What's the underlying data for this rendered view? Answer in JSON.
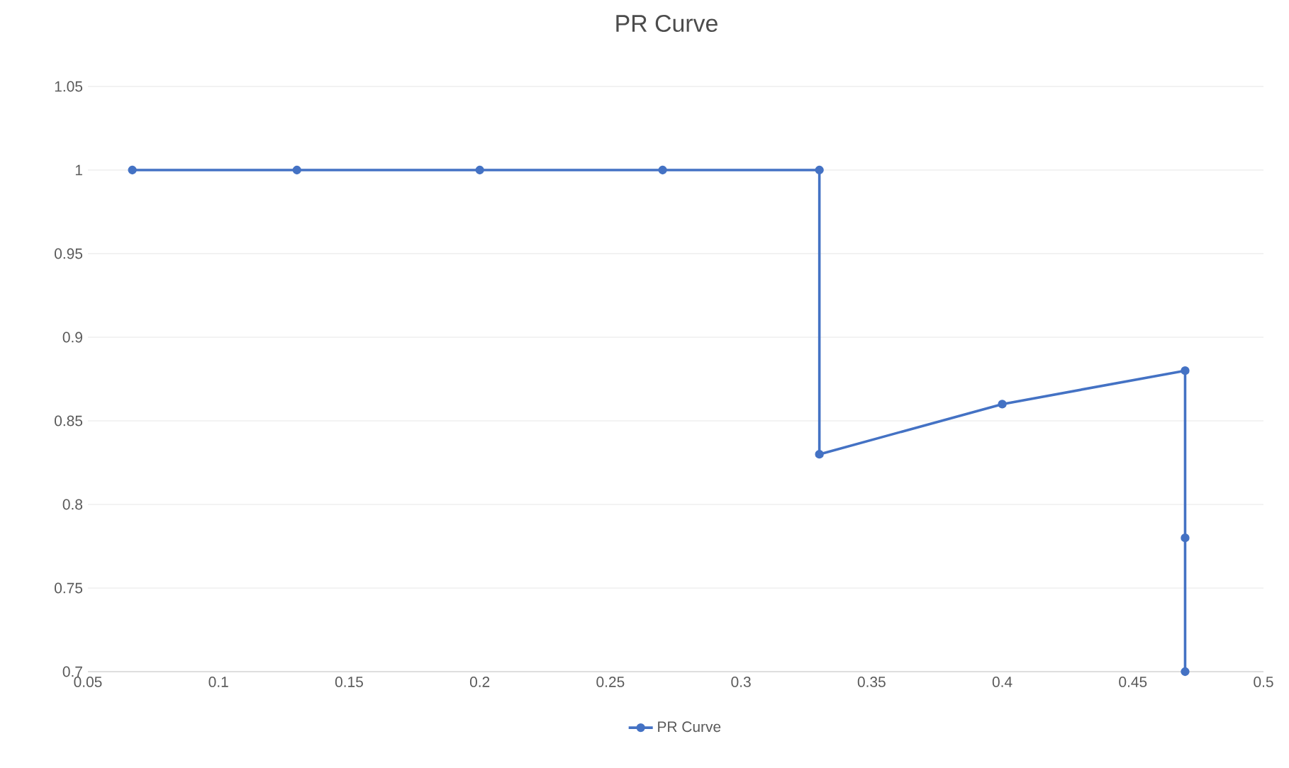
{
  "chart_data": {
    "type": "line",
    "title": "PR Curve",
    "x": [
      0.067,
      0.13,
      0.2,
      0.27,
      0.33,
      0.33,
      0.4,
      0.47,
      0.47,
      0.47
    ],
    "series": [
      {
        "name": "PR Curve",
        "color": "#4472c4",
        "values": [
          1,
          1,
          1,
          1,
          1,
          0.83,
          0.86,
          0.88,
          0.78,
          0.7
        ]
      }
    ],
    "xlim": [
      0.05,
      0.5
    ],
    "ylim": [
      0.7,
      1.05
    ],
    "xticks": [
      0.05,
      0.1,
      0.15,
      0.2,
      0.25,
      0.3,
      0.35,
      0.4,
      0.45,
      0.5
    ],
    "yticks": [
      0.7,
      0.75,
      0.8,
      0.85,
      0.9,
      0.95,
      1,
      1.05
    ],
    "grid": "y",
    "legend": "bottom",
    "marker": "circle",
    "line_style": "solid"
  }
}
